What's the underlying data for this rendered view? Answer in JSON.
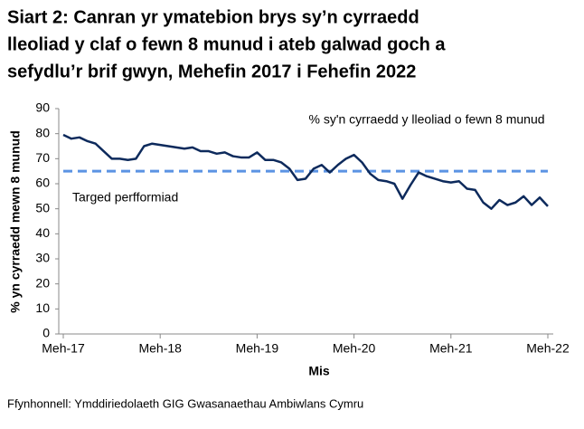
{
  "chart_data": {
    "type": "line",
    "title": [
      "Siart 2: Canran yr ymatebion brys sy’n cyrraedd",
      "lleoliad y claf o fewn 8 munud i ateb galwad goch a",
      "sefydlu’r brif gwyn, Mehefin 2017 i Fehefin 2022"
    ],
    "y_label": "% yn cyrraedd mewn 8 munud",
    "x_label": "Mis",
    "source": "Ffynhonnell: Ymddiriedolaeth GIG Gwasanaethau Ambiwlans Cymru",
    "categories": [
      "Meh-17",
      null,
      null,
      null,
      null,
      null,
      null,
      null,
      null,
      null,
      null,
      null,
      "Meh-18",
      null,
      null,
      null,
      null,
      null,
      null,
      null,
      null,
      null,
      null,
      null,
      "Meh-19",
      null,
      null,
      null,
      null,
      null,
      null,
      null,
      null,
      null,
      null,
      null,
      "Meh-20",
      null,
      null,
      null,
      null,
      null,
      null,
      null,
      null,
      null,
      null,
      null,
      "Meh-21",
      null,
      null,
      null,
      null,
      null,
      null,
      null,
      null,
      null,
      null,
      null,
      "Meh-22"
    ],
    "series": [
      {
        "name": "% sy'n cyrraedd y lleoliad o fewn 8 munud",
        "color": "#0d2a5c",
        "values": [
          79.5,
          78,
          78.5,
          77,
          76,
          73,
          70,
          70,
          69.5,
          70,
          75,
          76,
          75.5,
          75,
          74.5,
          74,
          74.5,
          73,
          73,
          72,
          72.5,
          71,
          70.5,
          70.5,
          72.5,
          69.5,
          69.5,
          68.5,
          66,
          61.5,
          62,
          66,
          67.5,
          64.5,
          67.5,
          70,
          71.5,
          68.5,
          64,
          61.5,
          61,
          60,
          54,
          59.5,
          64.5,
          63,
          62,
          61,
          60.5,
          61,
          58,
          57.5,
          52.5,
          50,
          53.5,
          51.5,
          52.5,
          55,
          51.5,
          54.5,
          51
        ]
      }
    ],
    "target": {
      "label": "Targed perfformiad",
      "value": 65,
      "color": "#5b93e3"
    },
    "ylim": [
      0,
      90
    ],
    "yticks": [
      0,
      10,
      20,
      30,
      40,
      50,
      60,
      70,
      80,
      90
    ]
  }
}
